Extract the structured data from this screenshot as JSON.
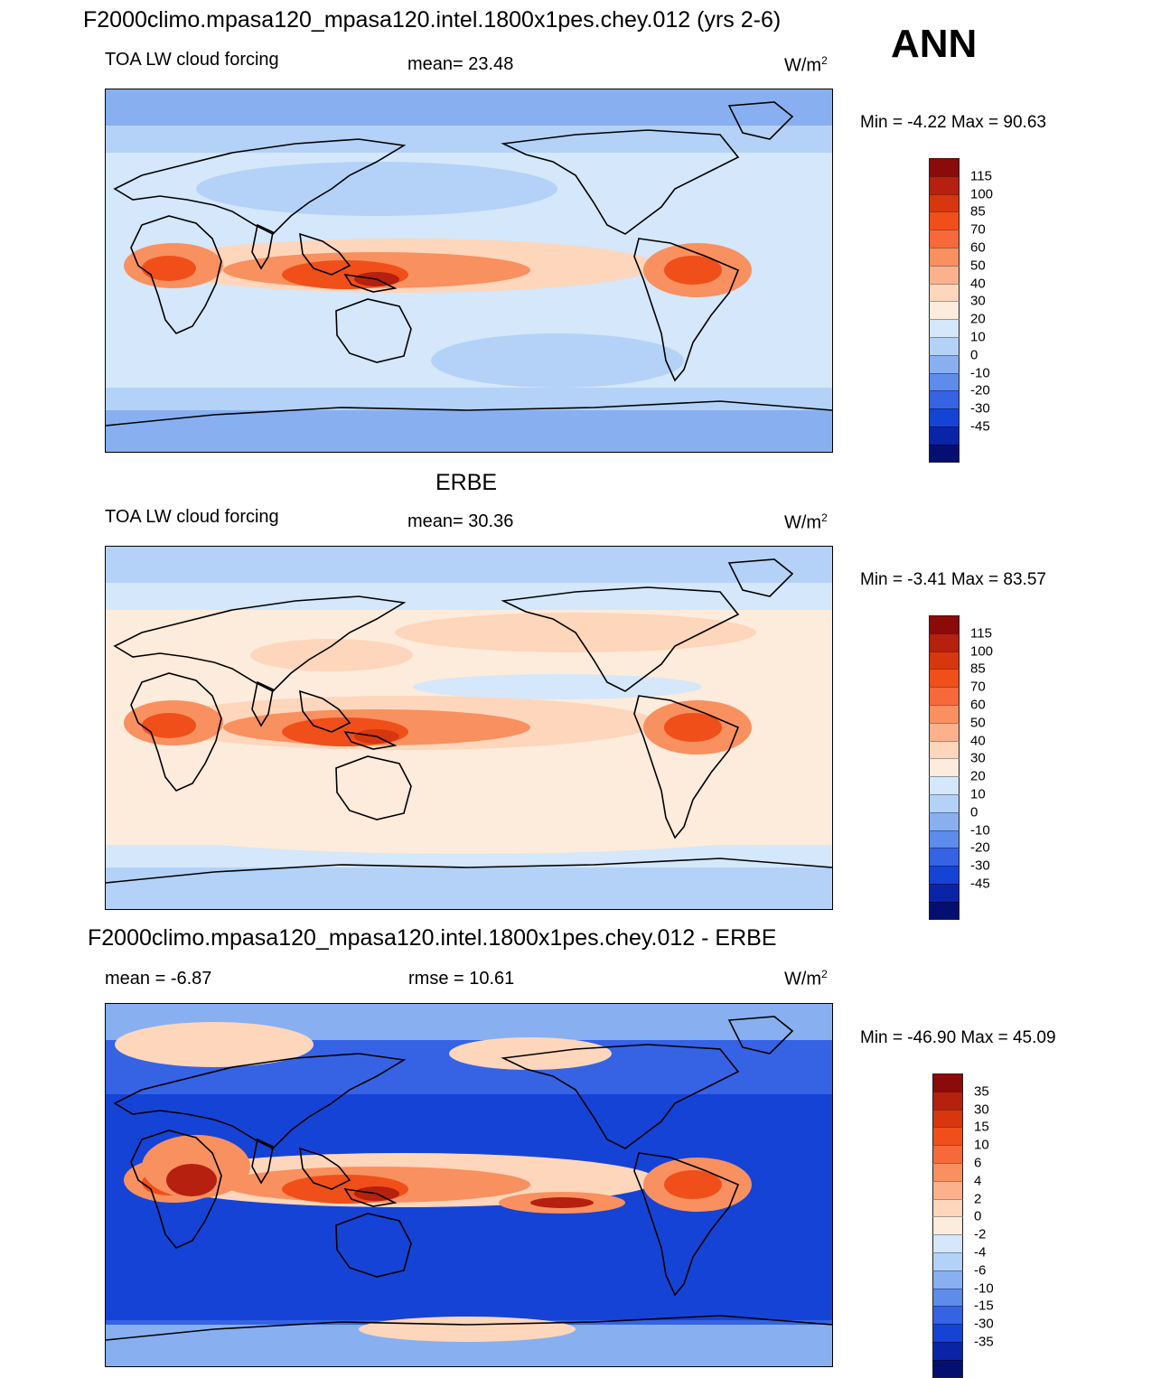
{
  "header": {
    "case_title": "F2000climo.mpasa120_mpasa120.intel.1800x1pes.chey.012 (yrs 2-6)",
    "season": "ANN"
  },
  "panels": [
    {
      "id": "model",
      "title": "",
      "variable": "TOA LW cloud forcing",
      "stat": "mean=  23.48",
      "units_base": "W/m",
      "units_sup": "2",
      "minmax": "Min =  -4.22 Max =  90.63",
      "levels": [
        "115",
        "100",
        "85",
        "70",
        "60",
        "50",
        "40",
        "30",
        "20",
        "10",
        "0",
        "-10",
        "-20",
        "-30",
        "-45"
      ],
      "colors": [
        "#8b0a0a",
        "#b5200f",
        "#d8360f",
        "#f04f1a",
        "#f7693a",
        "#f9905f",
        "#fbb28c",
        "#fdd6bb",
        "#fdebdb",
        "#d4e7fb",
        "#b4d2f7",
        "#88b0f1",
        "#5d8cea",
        "#3563e4",
        "#1543d6",
        "#0a24a8",
        "#050f70"
      ],
      "fills": {
        "bg": "#d4e7fb",
        "cool": "#b4d2f7",
        "cooler": "#88b0f1",
        "warm": "#fdd6bb",
        "warmer": "#f9905f",
        "hot": "#f04f1a",
        "hottest": "#b5200f"
      }
    },
    {
      "id": "obs",
      "title": "ERBE",
      "variable": "TOA LW cloud forcing",
      "stat": "mean=  30.36",
      "units_base": "W/m",
      "units_sup": "2",
      "minmax": "Min =  -3.41 Max =  83.57",
      "levels": [
        "115",
        "100",
        "85",
        "70",
        "60",
        "50",
        "40",
        "30",
        "20",
        "10",
        "0",
        "-10",
        "-20",
        "-30",
        "-45"
      ],
      "colors": [
        "#8b0a0a",
        "#b5200f",
        "#d8360f",
        "#f04f1a",
        "#f7693a",
        "#f9905f",
        "#fbb28c",
        "#fdd6bb",
        "#fdebdb",
        "#d4e7fb",
        "#b4d2f7",
        "#88b0f1",
        "#5d8cea",
        "#3563e4",
        "#1543d6",
        "#0a24a8",
        "#050f70"
      ],
      "fills": {
        "bg": "#fdebdb",
        "cool": "#d4e7fb",
        "cooler": "#b4d2f7",
        "warm": "#fdd6bb",
        "warmer": "#f9905f",
        "hot": "#f04f1a",
        "hottest": "#d8360f"
      }
    },
    {
      "id": "diff",
      "title": "F2000climo.mpasa120_mpasa120.intel.1800x1pes.chey.012 - ERBE",
      "variable": "mean =  -6.87",
      "stat": "rmse =  10.61",
      "units_base": "W/m",
      "units_sup": "2",
      "minmax": "Min = -46.90 Max =  45.09",
      "levels": [
        "35",
        "30",
        "15",
        "10",
        "6",
        "4",
        "2",
        "0",
        "-2",
        "-4",
        "-6",
        "-10",
        "-15",
        "-30",
        "-35"
      ],
      "colors": [
        "#8b0a0a",
        "#b5200f",
        "#d8360f",
        "#f04f1a",
        "#f7693a",
        "#f9905f",
        "#fbb28c",
        "#fdd6bb",
        "#fdebdb",
        "#d4e7fb",
        "#b4d2f7",
        "#88b0f1",
        "#5d8cea",
        "#3563e4",
        "#1543d6",
        "#0a24a8",
        "#050f70"
      ],
      "fills": {
        "bg": "#1543d6",
        "cool": "#3563e4",
        "cooler": "#88b0f1",
        "warm": "#fdd6bb",
        "warmer": "#f9905f",
        "hot": "#f04f1a",
        "hottest": "#b5200f"
      }
    }
  ]
}
